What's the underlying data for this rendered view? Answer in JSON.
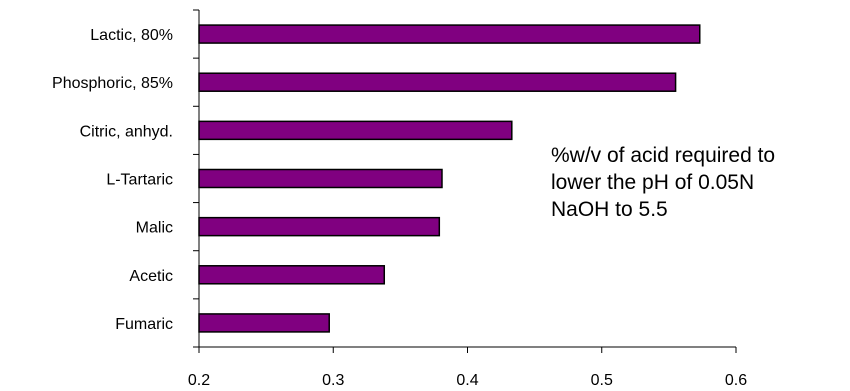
{
  "chart_data": {
    "type": "bar",
    "orientation": "horizontal",
    "categories": [
      "Lactic, 80%",
      "Phosphoric, 85%",
      "Citric, anhyd.",
      "L-Tartaric",
      "Malic",
      "Acetic",
      "Fumaric"
    ],
    "values": [
      0.573,
      0.555,
      0.433,
      0.381,
      0.379,
      0.338,
      0.297
    ],
    "xlim": [
      0.2,
      0.6
    ],
    "xticks": [
      "0.2",
      "0.3",
      "0.4",
      "0.5",
      "0.6"
    ],
    "title": "",
    "xlabel": "",
    "ylabel": "",
    "grid": false,
    "bar_color": "#800080",
    "annotation": {
      "lines": [
        "%w/v of acid required to",
        "lower the pH of 0.05N",
        "NaOH to 5.5"
      ]
    }
  }
}
